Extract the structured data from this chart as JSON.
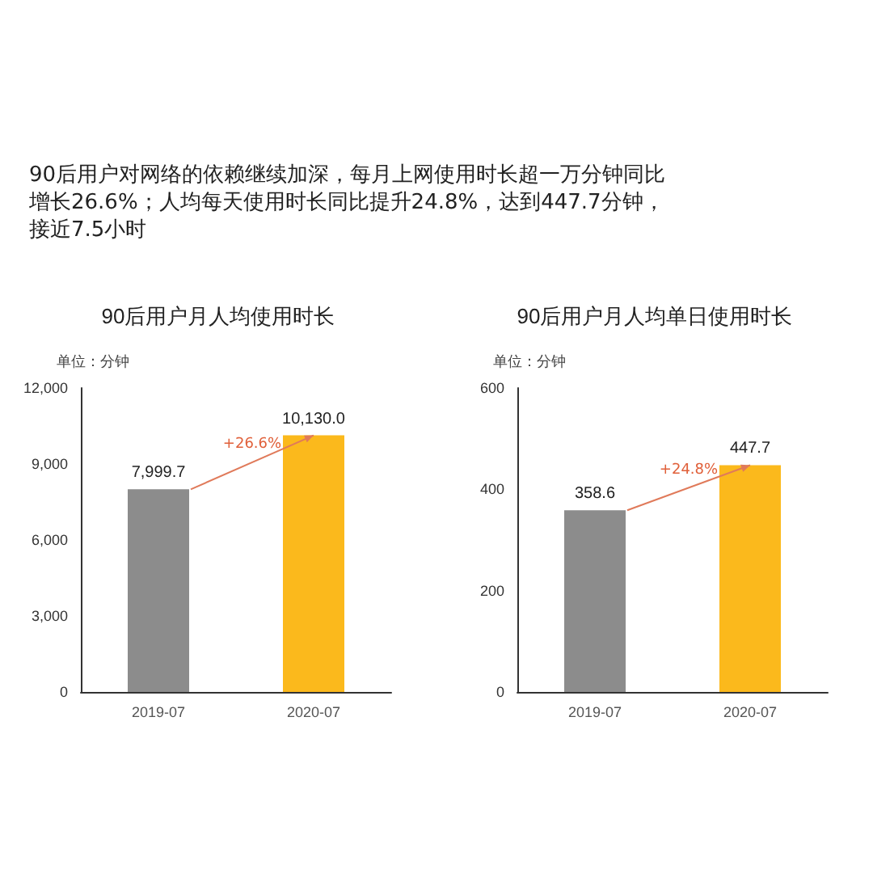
{
  "chart_data": [
    {
      "type": "other",
      "title": "90后用户对网络的依赖继续加深，每月上网使用时长超一万分钟同比增长26.6%；人均每天使用时长同比提升24.8%，达到447.7分钟，接近7.5小时"
    },
    {
      "type": "bar",
      "title": "90后用户月人均使用时长",
      "ylabel": "单位：分钟",
      "categories": [
        "2019-07",
        "2020-07"
      ],
      "values": [
        7999.7,
        10130.0
      ],
      "colors": [
        "#8c8c8c",
        "#fbb91c"
      ],
      "value_labels": [
        "7,999.7",
        "10,130.0"
      ],
      "ylim": [
        0,
        12000
      ],
      "yticks": [
        0,
        {
          "value": 3000,
          "label": "3,000"
        },
        {
          "value": 6000,
          "label": "6,000"
        },
        {
          "value": 9000,
          "label": "9,000"
        },
        {
          "value": 12000,
          "label": "12,000"
        }
      ],
      "annotations": [
        {
          "text": "+26.6%",
          "x": "2020-07",
          "y": 10130.0
        }
      ]
    },
    {
      "type": "bar",
      "title": "90后用户月人均单日使用时长",
      "ylabel": "单位：分钟",
      "categories": [
        "2019-07",
        "2020-07"
      ],
      "values": [
        358.6,
        447.7
      ],
      "colors": [
        "#8c8c8c",
        "#fbb91c"
      ],
      "value_labels": [
        "358.6",
        "447.7"
      ],
      "ylim": [
        0,
        600
      ],
      "yticks": [
        0,
        200,
        400,
        600
      ],
      "annotations": [
        {
          "text": "+24.8%",
          "x": "2020-07",
          "y": 447.7
        }
      ]
    }
  ]
}
